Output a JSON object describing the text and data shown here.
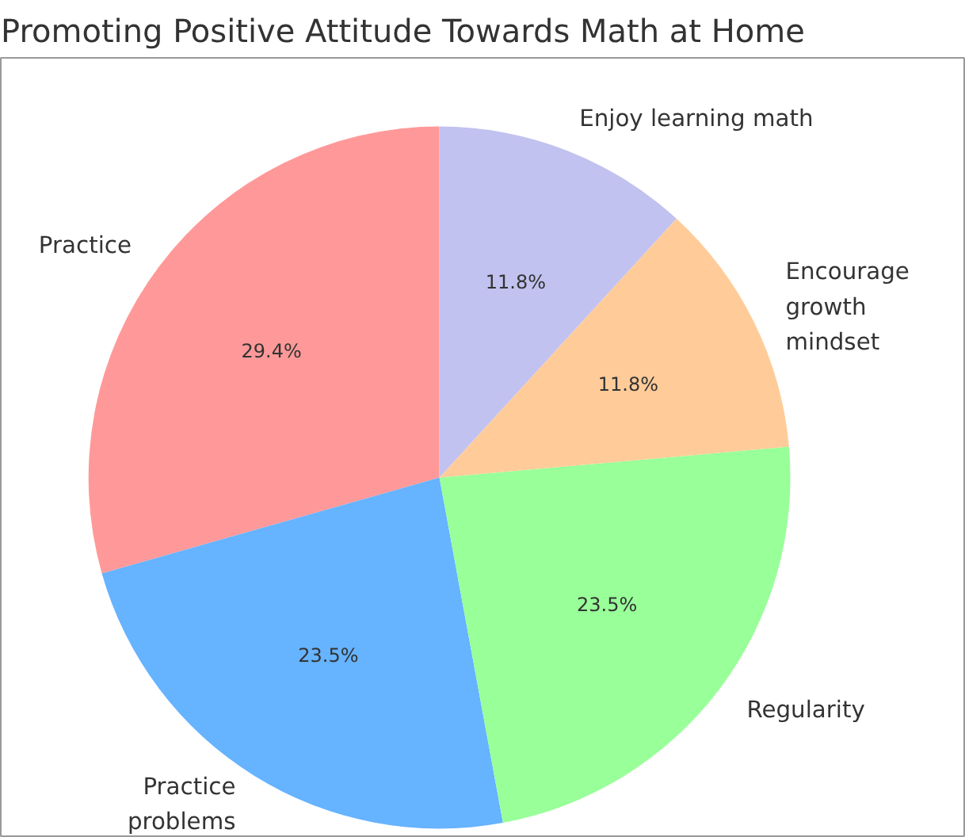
{
  "chart_data": {
    "type": "pie",
    "title": "Promoting Positive Attitude Towards Math at Home",
    "categories": [
      "Practice",
      "Practice\nproblems",
      "Regularity",
      "Encourage\ngrowth\nmindset",
      "Enjoy learning math"
    ],
    "values": [
      29.4,
      23.5,
      23.5,
      11.8,
      11.8
    ],
    "colors": [
      "#ff9999",
      "#66b3ff",
      "#99ff99",
      "#ffcc99",
      "#c2c2f0"
    ],
    "value_labels": [
      "29.4%",
      "23.5%",
      "23.5%",
      "11.8%",
      "11.8%"
    ]
  }
}
